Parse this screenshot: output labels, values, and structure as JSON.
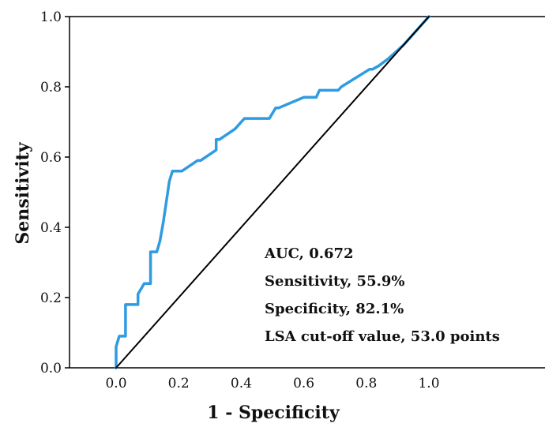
{
  "chart_data": {
    "type": "line",
    "xlabel": "1 - Specificity",
    "ylabel": "Sensitivity",
    "xlim": [
      -0.15,
      1.4
    ],
    "ylim": [
      0,
      1
    ],
    "x_ticks": [
      "0.0",
      "0.2",
      "0.4",
      "0.6",
      "0.8",
      "1.0"
    ],
    "y_ticks": [
      "0.0",
      "0.2",
      "0.4",
      "0.6",
      "0.8",
      "1.0"
    ],
    "grid": false,
    "series": [
      {
        "color": "#2e9be2",
        "x": [
          0.0,
          0.0,
          0.01,
          0.01,
          0.03,
          0.03,
          0.07,
          0.07,
          0.09,
          0.09,
          0.11,
          0.11,
          0.13,
          0.14,
          0.15,
          0.16,
          0.17,
          0.18,
          0.18,
          0.21,
          0.26,
          0.27,
          0.32,
          0.32,
          0.33,
          0.38,
          0.41,
          0.42,
          0.48,
          0.49,
          0.51,
          0.52,
          0.6,
          0.62,
          0.64,
          0.65,
          0.71,
          0.72,
          0.81,
          0.82,
          0.84,
          0.87,
          0.92,
          1.0
        ],
        "y": [
          0.0,
          0.06,
          0.09,
          0.09,
          0.09,
          0.18,
          0.18,
          0.21,
          0.24,
          0.24,
          0.24,
          0.33,
          0.33,
          0.36,
          0.41,
          0.47,
          0.53,
          0.56,
          0.56,
          0.56,
          0.59,
          0.59,
          0.62,
          0.65,
          0.65,
          0.68,
          0.71,
          0.71,
          0.71,
          0.71,
          0.74,
          0.74,
          0.77,
          0.77,
          0.77,
          0.79,
          0.79,
          0.8,
          0.85,
          0.85,
          0.86,
          0.88,
          0.92,
          1.0
        ]
      },
      {
        "color": "#000000",
        "x": [
          0.0,
          1.0
        ],
        "y": [
          0.0,
          1.0
        ]
      }
    ],
    "annotations": [
      "AUC, 0.672",
      "Sensitivity, 55.9%",
      "Specificity, 82.1%",
      "LSA cut-off value, 53.0 points"
    ]
  }
}
